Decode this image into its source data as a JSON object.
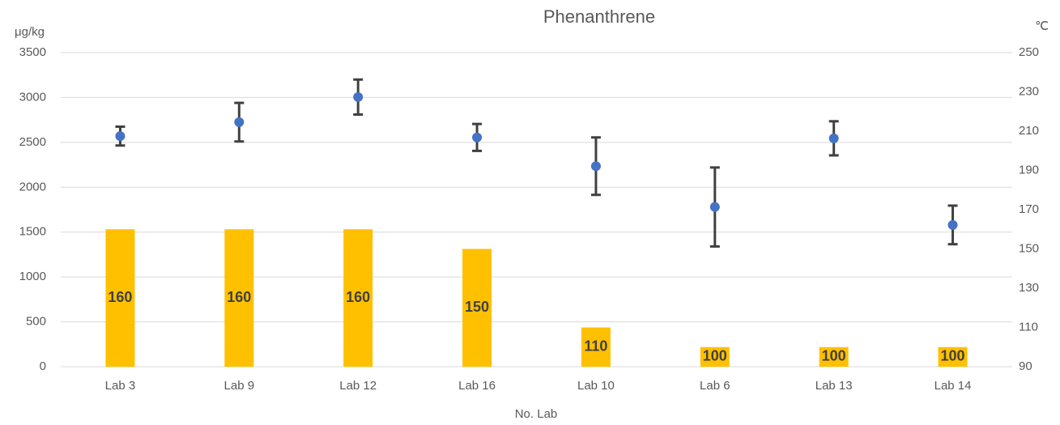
{
  "chart_data": {
    "type": "bar",
    "title": "Phenanthrene",
    "y_label": "μg/kg",
    "y2_label": "℃",
    "x_label": "No. Lab",
    "categories": [
      "Lab 3",
      "Lab 9",
      "Lab 12",
      "Lab 16",
      "Lab 10",
      "Lab 6",
      "Lab 13",
      "Lab 14"
    ],
    "ylim": [
      0,
      3500
    ],
    "yticks": [
      0,
      500,
      1000,
      1500,
      2000,
      2500,
      3000,
      3500
    ],
    "y2lim": [
      90,
      250
    ],
    "y2ticks": [
      90,
      110,
      130,
      150,
      170,
      190,
      210,
      230,
      250
    ],
    "grid": true,
    "series": [
      {
        "type": "bar",
        "axis": "y2",
        "color": "#ffc000",
        "data_labels": true,
        "values": [
          160,
          160,
          160,
          150,
          110,
          100,
          100,
          100
        ]
      },
      {
        "type": "scatter",
        "color": "#4472c4",
        "error_color": "#404040",
        "values": [
          2570,
          2725,
          3005,
          2555,
          2235,
          1780,
          2545,
          1580
        ],
        "errors": [
          105,
          215,
          195,
          150,
          320,
          440,
          190,
          215
        ]
      }
    ]
  }
}
